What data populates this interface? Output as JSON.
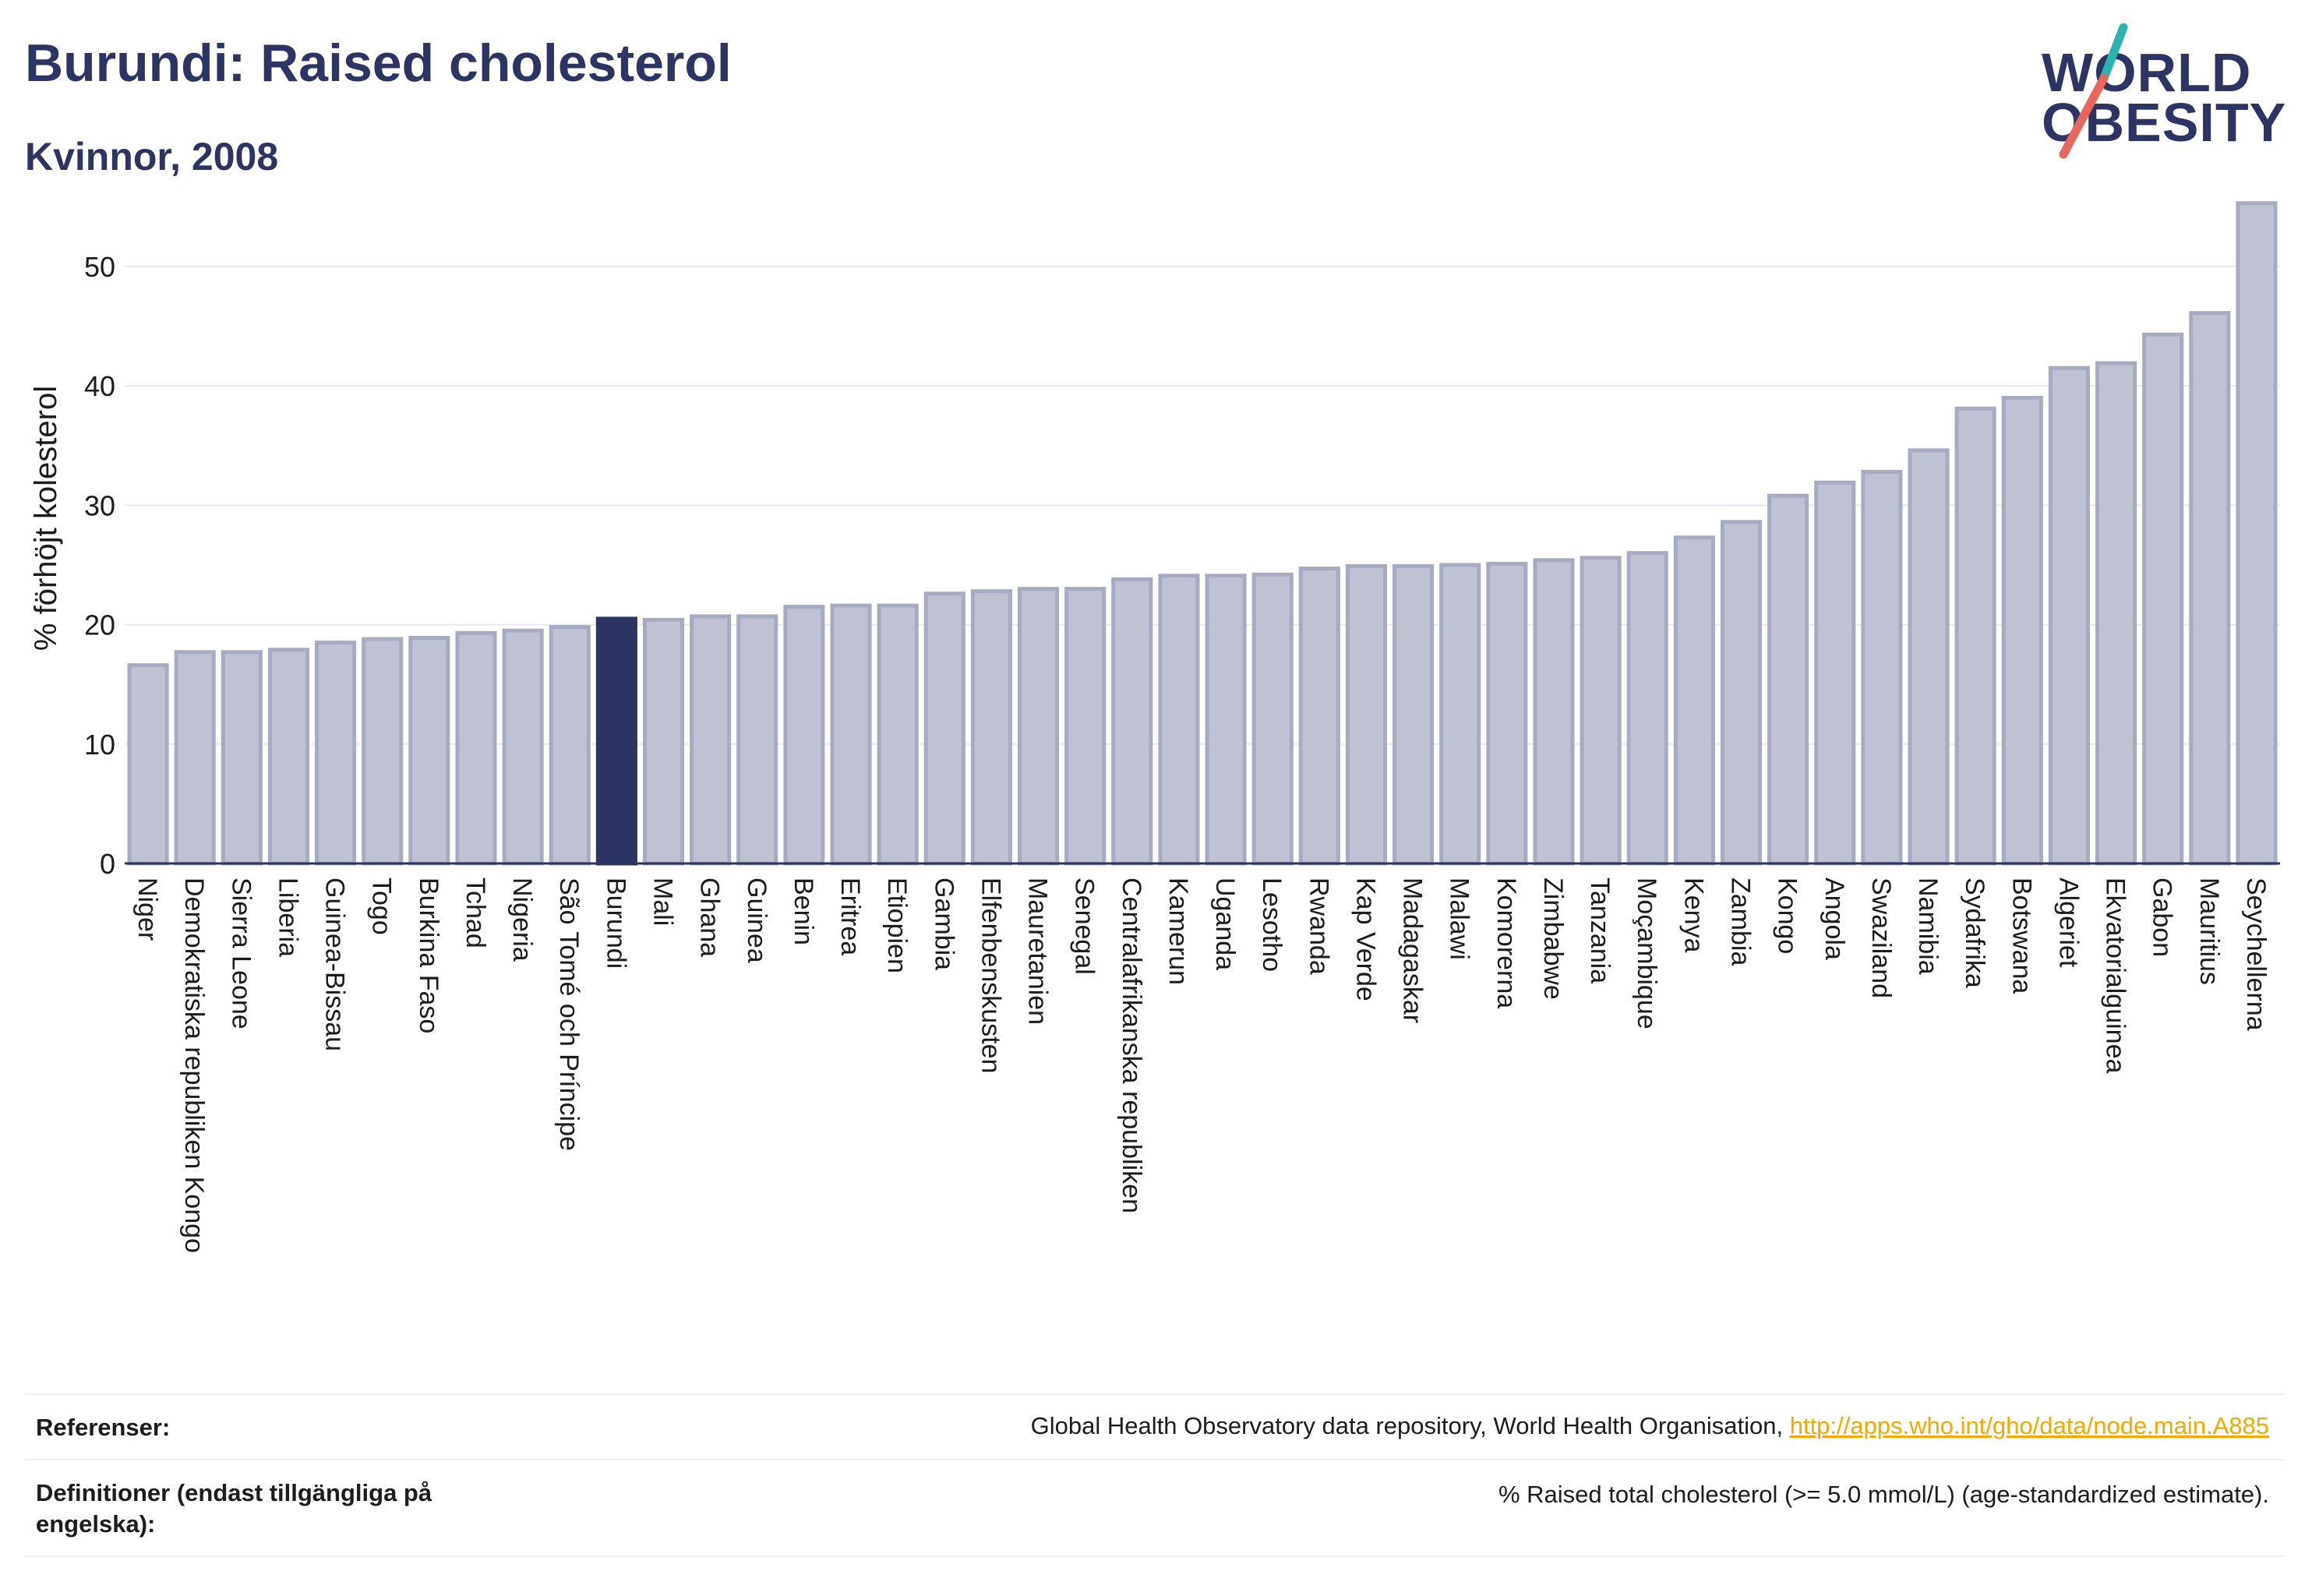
{
  "title": "Burundi: Raised cholesterol",
  "subtitle": "Kvinnor, 2008",
  "logo": {
    "line1": "WORLD",
    "line2": "OBESITY",
    "colors": {
      "teal": "#2ab3b1",
      "coral": "#e8665a",
      "navy": "#2b3462"
    }
  },
  "colors": {
    "bar": "#bec2d2",
    "bar_stroke": "#a7abc1",
    "highlight": "#2b3462",
    "grid": "#e6e8ef",
    "axis": "#2b3462",
    "text": "#1c1c1c",
    "link": "#f2a900"
  },
  "chart_data": {
    "type": "bar",
    "ylabel": "% förhöjt kolesterol",
    "ylim": [
      0,
      56
    ],
    "yticks": [
      0,
      10,
      20,
      30,
      40,
      50
    ],
    "highlight": "Burundi",
    "grid": true,
    "categories": [
      "Niger",
      "Demokratiska republiken Kongo",
      "Sierra Leone",
      "Liberia",
      "Guinea-Bissau",
      "Togo",
      "Burkina Faso",
      "Tchad",
      "Nigeria",
      "São Tomé och Príncipe",
      "Burundi",
      "Mali",
      "Ghana",
      "Guinea",
      "Benin",
      "Eritrea",
      "Etiopien",
      "Gambia",
      "Elfenbenskusten",
      "Mauretanien",
      "Senegal",
      "Centralafrikanska republiken",
      "Kamerun",
      "Uganda",
      "Lesotho",
      "Rwanda",
      "Kap Verde",
      "Madagaskar",
      "Malawi",
      "Komorerna",
      "Zimbabwe",
      "Tanzania",
      "Moçambique",
      "Kenya",
      "Zambia",
      "Kongo",
      "Angola",
      "Swaziland",
      "Namibia",
      "Sydafrika",
      "Botswana",
      "Algeriet",
      "Ekvatorialguinea",
      "Gabon",
      "Mauritius",
      "Seychellerna"
    ],
    "values": [
      16.6,
      17.7,
      17.7,
      17.9,
      18.5,
      18.8,
      18.9,
      19.3,
      19.5,
      19.8,
      20.5,
      20.4,
      20.7,
      20.7,
      21.5,
      21.6,
      21.6,
      22.6,
      22.8,
      23.0,
      23.0,
      23.8,
      24.1,
      24.1,
      24.2,
      24.7,
      24.9,
      24.9,
      25.0,
      25.1,
      25.4,
      25.6,
      26.0,
      27.3,
      28.6,
      30.8,
      31.9,
      32.8,
      34.6,
      38.1,
      39.0,
      41.5,
      41.9,
      44.3,
      46.1,
      55.3
    ]
  },
  "footer": {
    "references_label": "Referenser:",
    "references_text": "Global Health Observatory data repository, World Health Organisation, ",
    "references_link": "http://apps.who.int/gho/data/node.main.A885",
    "definitions_label": "Definitioner (endast tillgängliga på engelska):",
    "definitions_text": "% Raised total cholesterol (>= 5.0 mmol/L) (age-standardized estimate)."
  }
}
